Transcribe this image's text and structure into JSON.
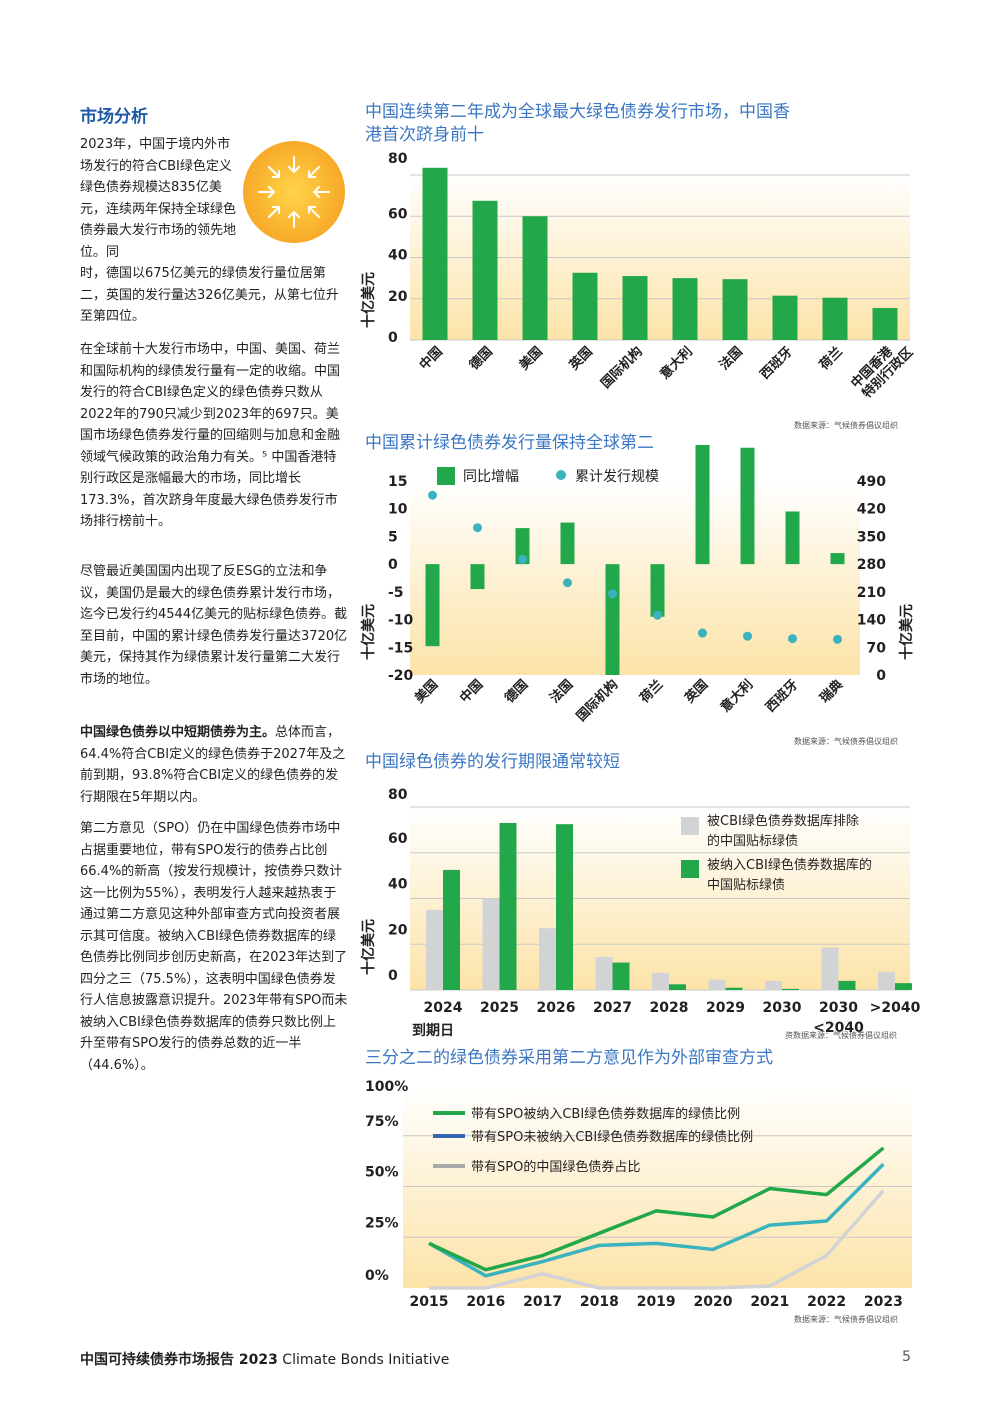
{
  "section": {
    "title": "市场分析",
    "p1a": "2023年，中国于境内外市场发行的符合CBI绿色定义绿色债券规模达835亿美元，连续两年保持全球绿色债券最大发行市场的领先地位。同",
    "p1b": "时，德国以675亿美元的绿债发行量位居第二，英国的发行量达326亿美元，从第七位升至第四位。",
    "p2": "在全球前十大发行市场中，中国、美国、荷兰和国际机构的绿债发行量有一定的收缩。中国发行的符合CBI绿色定义的绿色债券只数从2022年的790只减少到2023年的697只。美国市场绿色债券发行量的回缩则与加息和金融领域气候政策的政治角力有关。⁵ 中国香港特别行政区是涨幅最大的市场，同比增长173.3%，首次跻身年度最大绿色债券发行市场排行榜前十。",
    "p3": "尽管最近美国国内出现了反ESG的立法和争议，美国仍是最大的绿色债券累计发行市场，迄今已发行约4544亿美元的贴标绿色债券。截至目前，中国的累计绿色债券发行量达3720亿美元，保持其作为绿债累计发行量第二大发行市场的地位。",
    "p4_bold": "中国绿色债券以中短期债券为主。",
    "p4": "总体而言，64.4%符合CBI定义的绿色债券于2027年及之前到期，93.8%符合CBI定义的绿色债券的发行期限在5年期以内。",
    "p5": "第二方意见（SPO）仍在中国绿色债券市场中占据重要地位，带有SPO发行的债券占比创66.4%的新高（按发行规模计，按债券只数计这一比例为55%），表明发行人越来越热衷于通过第二方意见这种外部审查方式向投资者展示其可信度。被纳入CBI绿色债券数据库的绿色债券比例同步创历史新高，在2023年达到了四分之三（75.5%），这表明中国绿色债券发行人信息披露意识提升。2023年带有SPO而未被纳入CBI绿色债券数据库的债券只数比例上升至带有SPO发行的债券总数的近一半（44.6%）。"
  },
  "footer": {
    "report": "中国可持续债券市场报告 2023",
    "org": "Climate Bonds Initiative",
    "page": "5"
  },
  "colors": {
    "green": "#22a84a",
    "teal": "#3ab3bf",
    "gray": "#d2d3d4",
    "blue": "#3567b0",
    "title": "#3b77c2"
  },
  "icon": "sun-arrows-icon",
  "chart_data": [
    {
      "type": "bar",
      "title": "中国连续第二年成为全球最大绿色债券发行市场，中国香港首次跻身前十",
      "ylabel": "十亿美元",
      "ylim": [
        0,
        80
      ],
      "yticks": [
        "80",
        "60",
        "40",
        "20",
        "0"
      ],
      "categories": [
        "中国",
        "德国",
        "美国",
        "英国",
        "国际机构",
        "意大利",
        "法国",
        "西班牙",
        "荷兰",
        "中国香港特别行政区"
      ],
      "values": [
        83.5,
        67.5,
        60,
        32.6,
        31,
        30,
        29.5,
        21.5,
        20.5,
        15.5
      ],
      "source": "数据来源：气候债券倡议组织"
    },
    {
      "type": "bar",
      "title": "中国累计绿色债券发行量保持全球第二",
      "ylabel": "十亿美元",
      "y2label": "十亿美元",
      "ylim": [
        -20,
        15
      ],
      "y2lim": [
        0,
        490
      ],
      "yticks": [
        "15",
        "10",
        "5",
        "0",
        "-5",
        "-10",
        "-15",
        "-20"
      ],
      "y2ticks": [
        "490",
        "420",
        "350",
        "280",
        "210",
        "140",
        "70",
        "0"
      ],
      "categories": [
        "美国",
        "中国",
        "德国",
        "法国",
        "国际机构",
        "荷兰",
        "英国",
        "意大利",
        "西班牙",
        "瑞典"
      ],
      "series": [
        {
          "name": "同比增幅",
          "values": [
            -14.8,
            -4.5,
            6.5,
            7.5,
            -20,
            -9.5,
            21.5,
            21,
            9.5,
            2
          ]
        },
        {
          "name": "累计发行规模",
          "values": [
            454,
            372,
            292,
            233,
            205,
            151,
            106,
            98,
            92,
            90
          ]
        }
      ],
      "source": "数据来源：气候债券倡议组织"
    },
    {
      "type": "bar",
      "title": "中国绿色债券的发行期限通常较短",
      "ylabel": "十亿美元",
      "xlabel": "到期日",
      "ylim": [
        0,
        80
      ],
      "yticks": [
        "80",
        "60",
        "40",
        "20",
        "0"
      ],
      "categories": [
        "2024",
        "2025",
        "2026",
        "2027",
        "2028",
        "2029",
        "2030",
        "2030\n<2040",
        ">2040"
      ],
      "series": [
        {
          "name": "被CBI绿色债券数据库排除的中国贴标绿债",
          "values": [
            35,
            40,
            27,
            14.5,
            7.5,
            4.5,
            4,
            18.5,
            8
          ]
        },
        {
          "name": "被纳入CBI绿色债券数据库的中国贴标绿债",
          "values": [
            52.5,
            73,
            72.5,
            12,
            2.5,
            1,
            0.5,
            4,
            3
          ]
        }
      ],
      "source": "资数据来源：气候债券倡议组织"
    },
    {
      "type": "line",
      "title": "三分之二的绿色债券采用第二方意见作为外部审查方式",
      "ylim": [
        0,
        100
      ],
      "yticks": [
        "100%",
        "75%",
        "50%",
        "25%",
        "0%"
      ],
      "x": [
        "2015",
        "2016",
        "2017",
        "2018",
        "2019",
        "2020",
        "2021",
        "2022",
        "2023"
      ],
      "series": [
        {
          "name": "带有SPO被纳入CBI绿色债券数据库的绿债比例",
          "values": [
            22,
            9,
            16,
            27,
            38,
            35,
            49,
            46,
            69
          ]
        },
        {
          "name": "带有SPO未被纳入CBI绿色债券数据库的绿债比例",
          "values": [
            22,
            6,
            13,
            21,
            22,
            19,
            31,
            33,
            61
          ]
        },
        {
          "name": "带有SPO的中国绿色债券占比",
          "values": [
            0,
            0,
            7,
            0,
            0,
            0,
            1,
            16,
            48
          ]
        }
      ],
      "source": "数据来源：气候债券倡议组织"
    }
  ]
}
